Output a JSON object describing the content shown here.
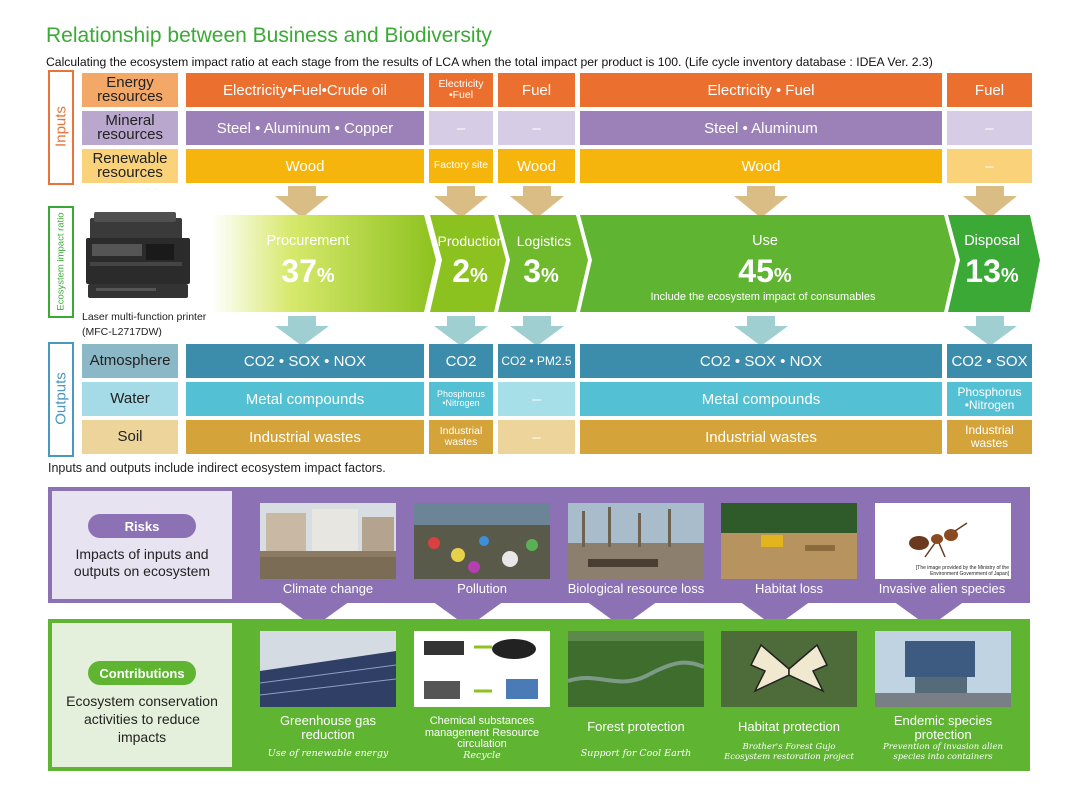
{
  "title": "Relationship between Business and Biodiversity",
  "subtitle": "Calculating the ecosystem impact ratio at each stage from the results of LCA when the total impact per product is 100. (Life cycle inventory database : IDEA Ver. 2.3)",
  "inputs": {
    "side_label": "Inputs",
    "rows": [
      {
        "label": "Energy resources",
        "cells": [
          "Electricity•Fuel•Crude oil",
          "Electricity •Fuel",
          "Fuel",
          "Electricity • Fuel",
          "Fuel"
        ]
      },
      {
        "label": "Mineral resources",
        "cells": [
          "Steel • Aluminum • Copper",
          "–",
          "–",
          "Steel • Aluminum",
          "–"
        ]
      },
      {
        "label": "Renewable resources",
        "cells": [
          "Wood",
          "Factory site",
          "Wood",
          "Wood",
          "–"
        ]
      }
    ]
  },
  "ecosystem": {
    "side_label": "Ecosystem impact ratio",
    "product_label": "Laser multi-function printer",
    "product_model": "(MFC-L2717DW)",
    "stages": [
      {
        "name": "Procurement",
        "value": "37",
        "unit": "%"
      },
      {
        "name": "Production",
        "value": "2",
        "unit": "%"
      },
      {
        "name": "Logistics",
        "value": "3",
        "unit": "%"
      },
      {
        "name": "Use",
        "value": "45",
        "unit": "%",
        "note": "Include the ecosystem impact of consumables"
      },
      {
        "name": "Disposal",
        "value": "13",
        "unit": "%"
      }
    ]
  },
  "outputs": {
    "side_label": "Outputs",
    "rows": [
      {
        "label": "Atmosphere",
        "cells": [
          "CO2 • SOX • NOX",
          "CO2",
          "CO2 • PM2.5",
          "CO2 • SOX • NOX",
          "CO2 • SOX"
        ]
      },
      {
        "label": "Water",
        "cells": [
          "Metal compounds",
          "Phosphorus •Nitrogen",
          "–",
          "Metal compounds",
          "Phosphorus •Nitrogen"
        ]
      },
      {
        "label": "Soil",
        "cells": [
          "Industrial wastes",
          "Industrial wastes",
          "–",
          "Industrial wastes",
          "Industrial wastes"
        ]
      }
    ]
  },
  "note": "Inputs and outputs include indirect ecosystem impact factors.",
  "risks": {
    "pill": "Risks",
    "text": "Impacts of inputs and outputs on ecosystem",
    "items": [
      "Climate change",
      "Pollution",
      "Biological resource loss",
      "Habitat loss",
      "Invasive alien species"
    ],
    "credit": "[The image provided by the Ministry of the Environment Government of Japan]"
  },
  "contributions": {
    "pill": "Contributions",
    "text": "Ecosystem conservation activities to reduce impacts",
    "items": [
      {
        "title": "Greenhouse gas reduction",
        "sub": "Use of renewable energy"
      },
      {
        "title": "Chemical substances management Resource circulation",
        "sub": "Recycle"
      },
      {
        "title": "Forest protection",
        "sub": "Support for Cool Earth"
      },
      {
        "title": "Habitat protection",
        "sub": "Brother's Forest Gujo Ecosystem restoration project"
      },
      {
        "title": "Endemic species protection",
        "sub": "Prevention of invasion alien species into containers"
      }
    ]
  }
}
